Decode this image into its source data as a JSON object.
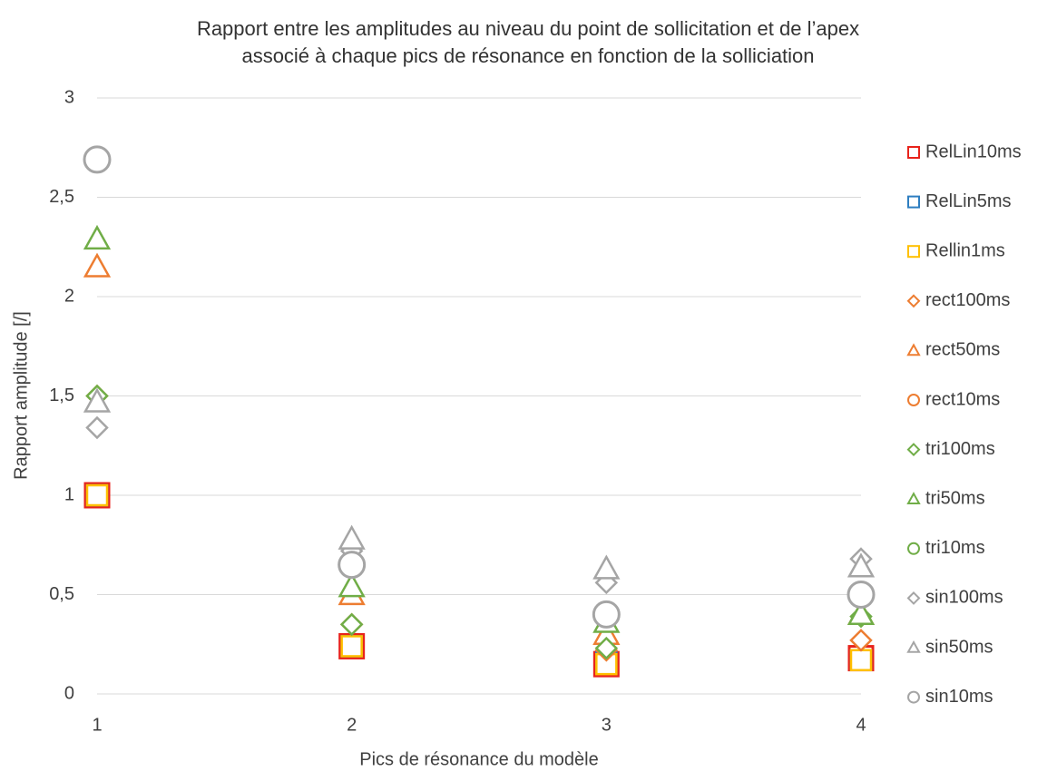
{
  "chart_data": {
    "type": "scatter",
    "title": [
      "Rapport entre les amplitudes au niveau du point de sollicitation et de l’apex",
      "associé à chaque pics de résonance en fonction de la solliciation"
    ],
    "x_label": "Pics de résonance du modèle",
    "y_label": "Rapport amplitude [/]",
    "x": [
      1,
      2,
      3,
      4
    ],
    "xlim": [
      1,
      4
    ],
    "xticks": [
      1,
      2,
      3,
      4
    ],
    "ylim": [
      0,
      3
    ],
    "yticks": [
      0,
      {
        "value": 0.5,
        "label": "0,5"
      },
      1,
      {
        "value": 1.5,
        "label": "1,5"
      },
      2,
      {
        "value": 2.5,
        "label": "2,5"
      },
      3
    ],
    "grid": true,
    "legend": "right",
    "series": [
      {
        "name": "RelLin10ms",
        "color": "#e8231b",
        "marker": "square",
        "values": [
          1.0,
          0.24,
          0.15,
          0.18
        ]
      },
      {
        "name": "RelLin5ms",
        "color": "#2e7ec0",
        "marker": "square",
        "values": [
          1.0,
          0.24,
          0.16,
          0.17
        ]
      },
      {
        "name": "Rellin1ms",
        "color": "#ffc000",
        "marker": "square",
        "values": [
          1.0,
          0.24,
          0.15,
          0.17
        ]
      },
      {
        "name": "rect100ms",
        "color": "#ed7d31",
        "marker": "diamond",
        "values": [
          1.5,
          0.35,
          0.22,
          0.27
        ]
      },
      {
        "name": "rect50ms",
        "color": "#ed7d31",
        "marker": "triangle",
        "values": [
          2.15,
          0.5,
          0.3,
          0.4
        ]
      },
      {
        "name": "rect10ms",
        "color": "#ed7d31",
        "marker": "circle",
        "values": [
          2.69,
          0.65,
          0.4,
          0.5
        ]
      },
      {
        "name": "tri100ms",
        "color": "#70ad47",
        "marker": "diamond",
        "values": [
          1.5,
          0.35,
          0.23,
          0.39
        ]
      },
      {
        "name": "tri50ms",
        "color": "#70ad47",
        "marker": "triangle",
        "values": [
          2.29,
          0.54,
          0.36,
          0.4
        ]
      },
      {
        "name": "tri10ms",
        "color": "#70ad47",
        "marker": "circle",
        "values": [
          2.69,
          0.65,
          0.4,
          0.5
        ]
      },
      {
        "name": "sin100ms",
        "color": "#a5a5a5",
        "marker": "diamond",
        "values": [
          1.34,
          0.72,
          0.56,
          0.68
        ]
      },
      {
        "name": "sin50ms",
        "color": "#a5a5a5",
        "marker": "triangle",
        "values": [
          1.47,
          0.78,
          0.63,
          0.64
        ]
      },
      {
        "name": "sin10ms",
        "color": "#a5a5a5",
        "marker": "circle",
        "values": [
          2.69,
          0.65,
          0.4,
          0.5
        ]
      }
    ]
  }
}
